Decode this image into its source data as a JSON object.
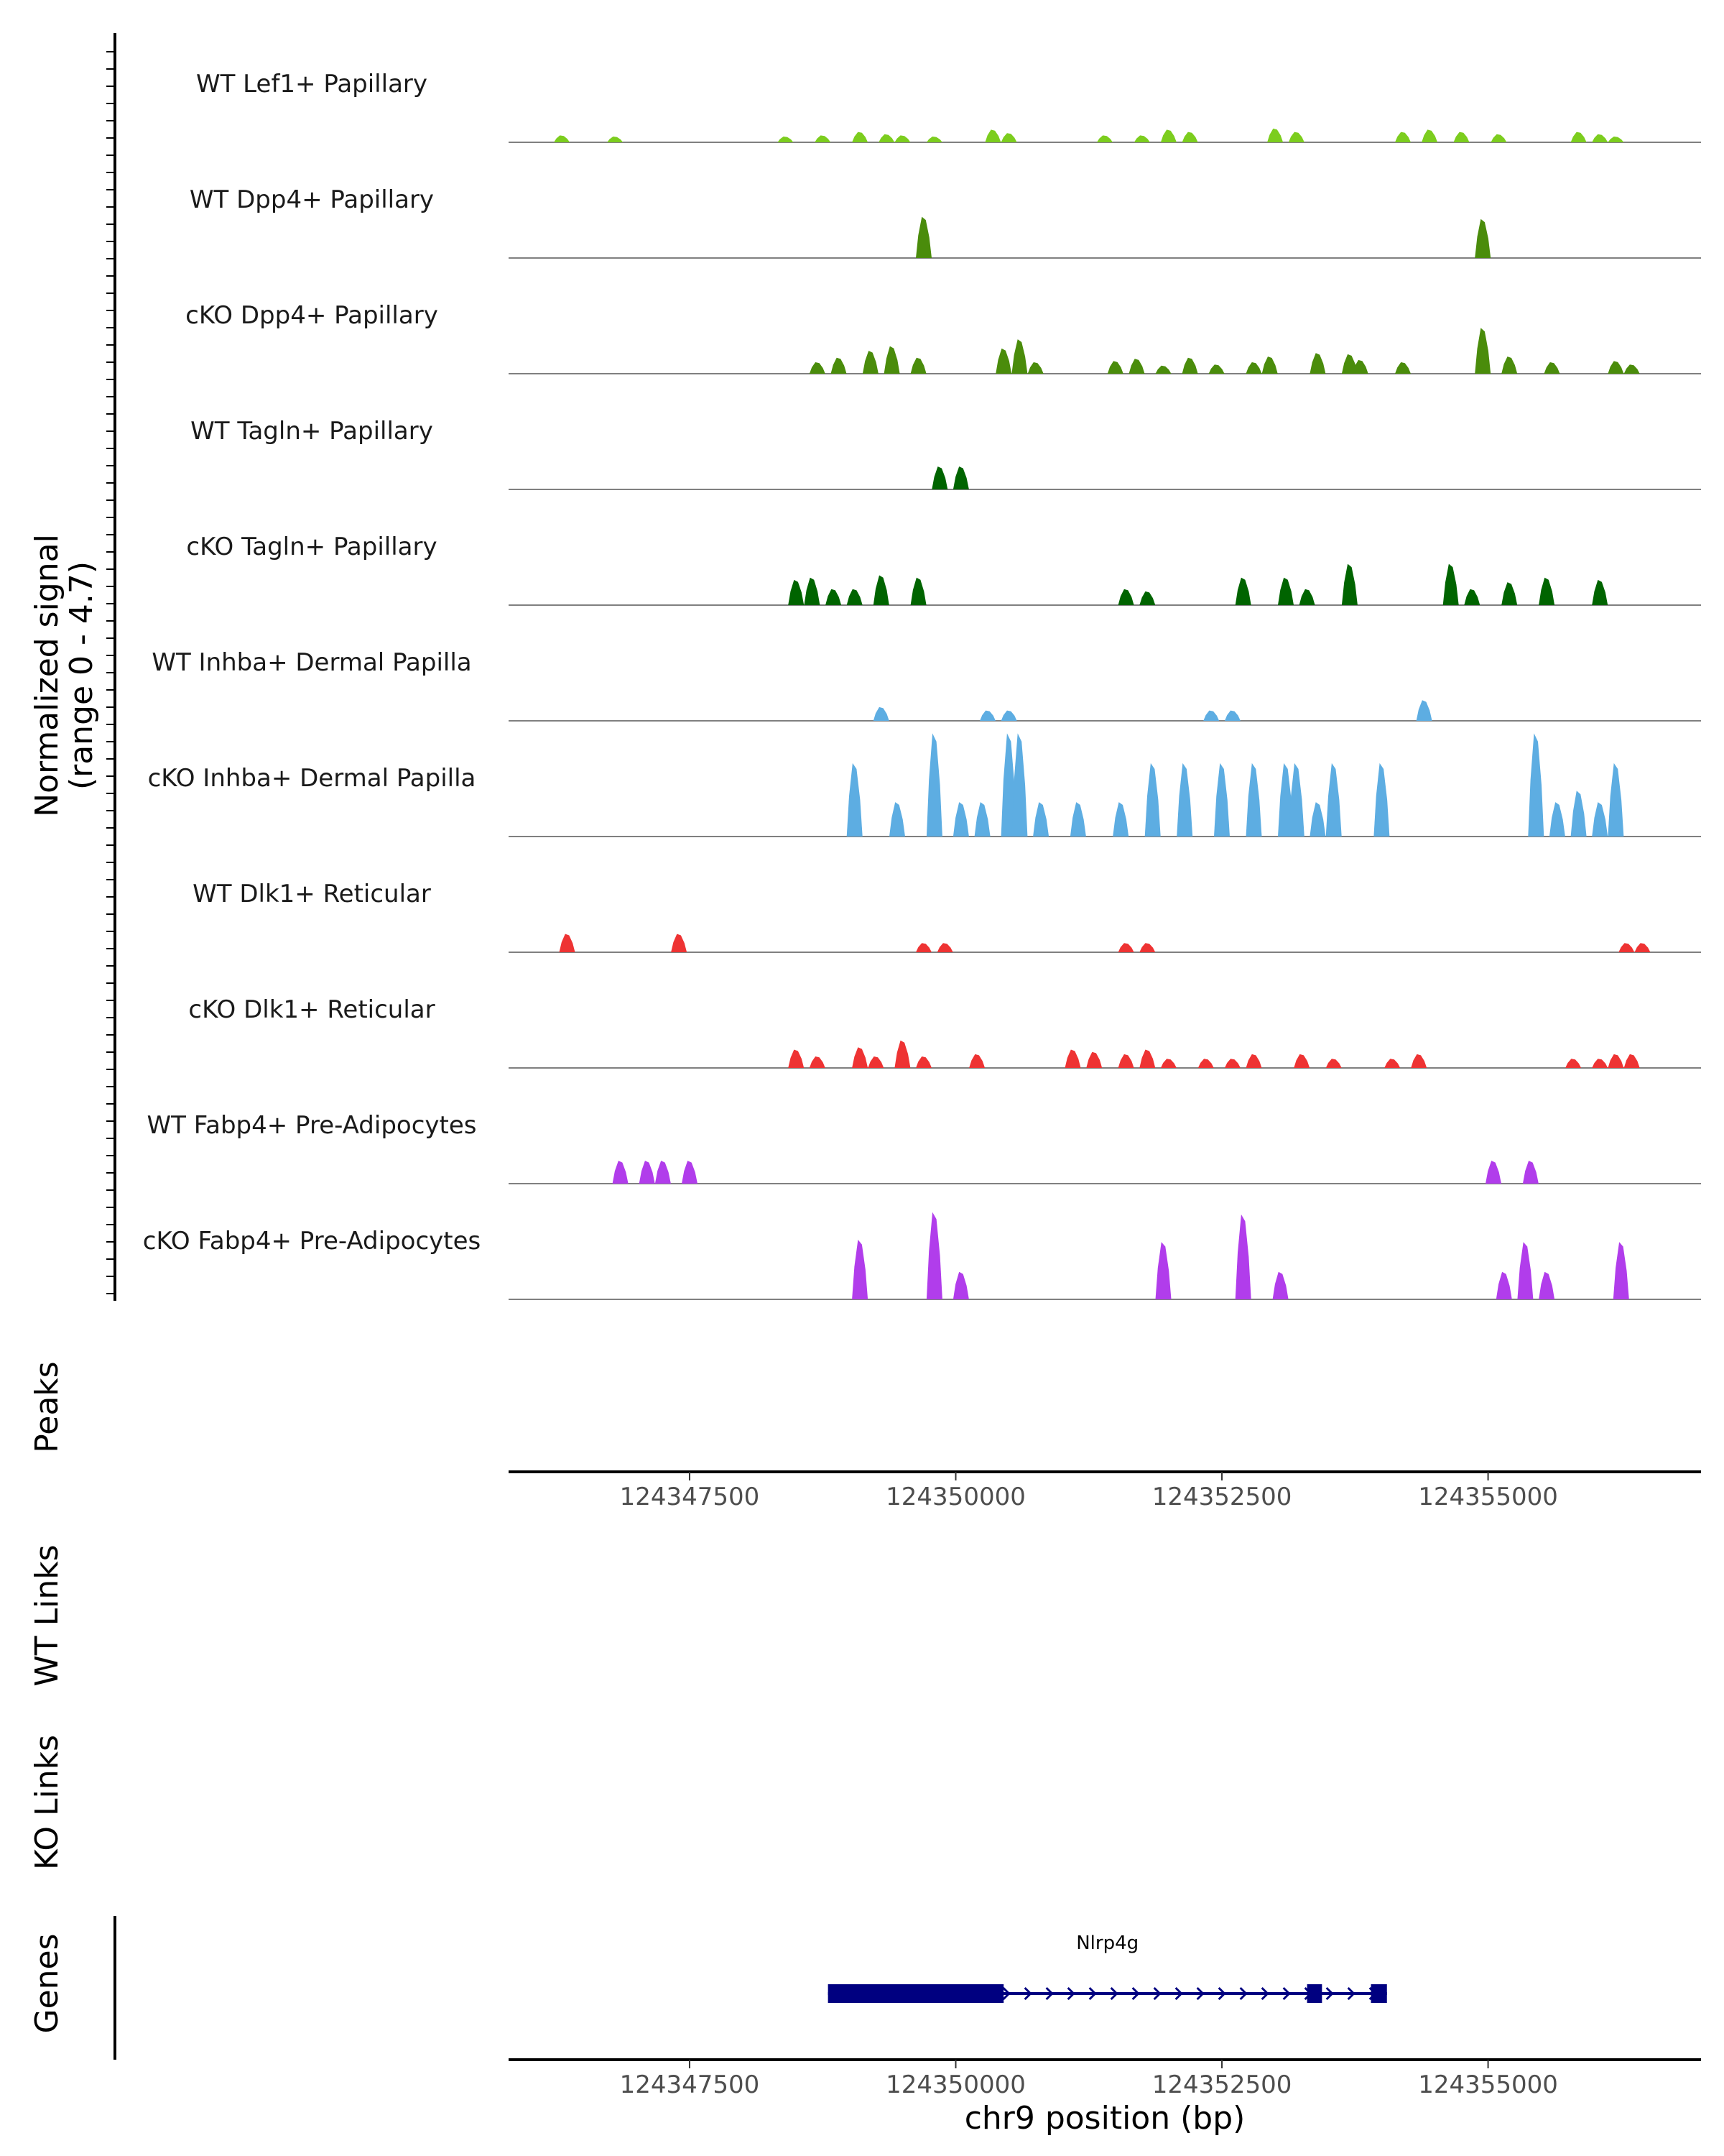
{
  "chart_data": {
    "type": "area",
    "region": {
      "start": 124345800,
      "end": 124357000
    },
    "y_axis_title_line1": "Normalized signal",
    "y_axis_title_line2": "(range 0 - 4.7)",
    "ylim": [
      0,
      4.7
    ],
    "x_axis_title": "chr9 position (bp)",
    "x_ticks": [
      124347500,
      124350000,
      124352500,
      124355000
    ],
    "x_tick_labels": [
      "124347500",
      "124350000",
      "124352500",
      "124355000"
    ],
    "panel_labels": {
      "peaks": "Peaks",
      "wt_links": "WT Links",
      "ko_links": "KO Links",
      "genes": "Genes"
    },
    "tracks": [
      {
        "name": "WT Lef1+ Papillary",
        "color": "#7CCD1E",
        "peaks": [
          [
            124346300,
            0.3
          ],
          [
            124346800,
            0.25
          ],
          [
            124348400,
            0.25
          ],
          [
            124348750,
            0.3
          ],
          [
            124349100,
            0.45
          ],
          [
            124349350,
            0.35
          ],
          [
            124349500,
            0.3
          ],
          [
            124349800,
            0.25
          ],
          [
            124350350,
            0.55
          ],
          [
            124350500,
            0.4
          ],
          [
            124351400,
            0.3
          ],
          [
            124351750,
            0.3
          ],
          [
            124352000,
            0.55
          ],
          [
            124352200,
            0.45
          ],
          [
            124353000,
            0.6
          ],
          [
            124353200,
            0.45
          ],
          [
            124354200,
            0.45
          ],
          [
            124354450,
            0.55
          ],
          [
            124354750,
            0.45
          ],
          [
            124355100,
            0.35
          ],
          [
            124355850,
            0.45
          ],
          [
            124356050,
            0.35
          ],
          [
            124356200,
            0.25
          ]
        ]
      },
      {
        "name": "WT Dpp4+ Papillary",
        "color": "#4A8C0B",
        "peaks": [
          [
            124349700,
            1.8
          ],
          [
            124354950,
            1.7
          ]
        ]
      },
      {
        "name": "cKO Dpp4+ Papillary",
        "color": "#4A8C0B",
        "peaks": [
          [
            124348700,
            0.5
          ],
          [
            124348900,
            0.7
          ],
          [
            124349200,
            1.0
          ],
          [
            124349400,
            1.2
          ],
          [
            124349650,
            0.7
          ],
          [
            124350450,
            1.1
          ],
          [
            124350600,
            1.5
          ],
          [
            124350750,
            0.5
          ],
          [
            124351500,
            0.55
          ],
          [
            124351700,
            0.65
          ],
          [
            124351950,
            0.35
          ],
          [
            124352200,
            0.7
          ],
          [
            124352450,
            0.4
          ],
          [
            124352800,
            0.5
          ],
          [
            124352950,
            0.75
          ],
          [
            124353400,
            0.9
          ],
          [
            124353700,
            0.85
          ],
          [
            124353800,
            0.6
          ],
          [
            124354200,
            0.5
          ],
          [
            124354950,
            2.0
          ],
          [
            124355200,
            0.75
          ],
          [
            124355600,
            0.5
          ],
          [
            124356200,
            0.55
          ],
          [
            124356350,
            0.4
          ]
        ]
      },
      {
        "name": "WT Tagln+ Papillary",
        "color": "#006400",
        "peaks": [
          [
            124349850,
            1.0
          ],
          [
            124350050,
            1.0
          ]
        ]
      },
      {
        "name": "cKO Tagln+ Papillary",
        "color": "#006400",
        "peaks": [
          [
            124348500,
            1.1
          ],
          [
            124348650,
            1.2
          ],
          [
            124348850,
            0.7
          ],
          [
            124349050,
            0.7
          ],
          [
            124349300,
            1.3
          ],
          [
            124349650,
            1.2
          ],
          [
            124351600,
            0.7
          ],
          [
            124351800,
            0.6
          ],
          [
            124352700,
            1.2
          ],
          [
            124353100,
            1.2
          ],
          [
            124353300,
            0.7
          ],
          [
            124353700,
            1.8
          ],
          [
            124354650,
            1.8
          ],
          [
            124354850,
            0.7
          ],
          [
            124355200,
            1.0
          ],
          [
            124355550,
            1.2
          ],
          [
            124356050,
            1.1
          ]
        ]
      },
      {
        "name": "WT Inhba+ Dermal Papilla",
        "color": "#5DADE2",
        "peaks": [
          [
            124349300,
            0.6
          ],
          [
            124350300,
            0.45
          ],
          [
            124350500,
            0.45
          ],
          [
            124352400,
            0.45
          ],
          [
            124352600,
            0.45
          ],
          [
            124354400,
            0.9
          ]
        ]
      },
      {
        "name": "cKO Inhba+ Dermal Papilla",
        "color": "#5DADE2",
        "peaks": [
          [
            124349050,
            3.2
          ],
          [
            124349450,
            1.5
          ],
          [
            124349800,
            4.5
          ],
          [
            124350050,
            1.5
          ],
          [
            124350250,
            1.5
          ],
          [
            124350500,
            4.5
          ],
          [
            124350600,
            4.5
          ],
          [
            124350800,
            1.5
          ],
          [
            124351150,
            1.5
          ],
          [
            124351550,
            1.5
          ],
          [
            124351850,
            3.2
          ],
          [
            124352150,
            3.2
          ],
          [
            124352500,
            3.2
          ],
          [
            124352800,
            3.2
          ],
          [
            124353100,
            3.2
          ],
          [
            124353200,
            3.2
          ],
          [
            124353400,
            1.5
          ],
          [
            124353550,
            3.2
          ],
          [
            124354000,
            3.2
          ],
          [
            124355450,
            4.5
          ],
          [
            124355650,
            1.5
          ],
          [
            124355850,
            2.0
          ],
          [
            124356050,
            1.5
          ],
          [
            124356200,
            3.2
          ]
        ]
      },
      {
        "name": "WT Dlk1+ Reticular",
        "color": "#EE3333",
        "peaks": [
          [
            124346350,
            0.8
          ],
          [
            124347400,
            0.8
          ],
          [
            124349700,
            0.4
          ],
          [
            124349900,
            0.4
          ],
          [
            124351600,
            0.4
          ],
          [
            124351800,
            0.4
          ],
          [
            124356300,
            0.4
          ],
          [
            124356450,
            0.4
          ]
        ]
      },
      {
        "name": "cKO Dlk1+ Reticular",
        "color": "#EE3333",
        "peaks": [
          [
            124348500,
            0.8
          ],
          [
            124348700,
            0.5
          ],
          [
            124349100,
            0.9
          ],
          [
            124349250,
            0.5
          ],
          [
            124349500,
            1.2
          ],
          [
            124349700,
            0.5
          ],
          [
            124350200,
            0.6
          ],
          [
            124351100,
            0.8
          ],
          [
            124351300,
            0.7
          ],
          [
            124351600,
            0.6
          ],
          [
            124351800,
            0.8
          ],
          [
            124352000,
            0.4
          ],
          [
            124352350,
            0.4
          ],
          [
            124352600,
            0.4
          ],
          [
            124352800,
            0.6
          ],
          [
            124353250,
            0.6
          ],
          [
            124353550,
            0.4
          ],
          [
            124354100,
            0.4
          ],
          [
            124354350,
            0.6
          ],
          [
            124355800,
            0.4
          ],
          [
            124356050,
            0.4
          ],
          [
            124356200,
            0.6
          ],
          [
            124356350,
            0.6
          ]
        ]
      },
      {
        "name": "WT Fabp4+ Pre-Adipocytes",
        "color": "#B13DEB",
        "peaks": [
          [
            124346850,
            1.0
          ],
          [
            124347100,
            1.0
          ],
          [
            124347250,
            1.0
          ],
          [
            124347500,
            1.0
          ],
          [
            124355050,
            1.0
          ],
          [
            124355400,
            1.0
          ]
        ]
      },
      {
        "name": "cKO Fabp4+ Pre-Adipocytes",
        "color": "#B13DEB",
        "peaks": [
          [
            124349100,
            2.6
          ],
          [
            124349800,
            3.8
          ],
          [
            124350050,
            1.2
          ],
          [
            124351950,
            2.5
          ],
          [
            124352700,
            3.7
          ],
          [
            124353050,
            1.2
          ],
          [
            124355150,
            1.2
          ],
          [
            124355350,
            2.5
          ],
          [
            124355550,
            1.2
          ],
          [
            124356250,
            2.5
          ]
        ]
      }
    ],
    "genes": [
      {
        "name": "Nlrp4g",
        "start": 124348800,
        "end": 124354050,
        "strand": "+",
        "exons": [
          [
            124348800,
            124350450
          ],
          [
            124353300,
            124353440
          ],
          [
            124353900,
            124354050
          ]
        ],
        "color": "#000080"
      }
    ]
  }
}
